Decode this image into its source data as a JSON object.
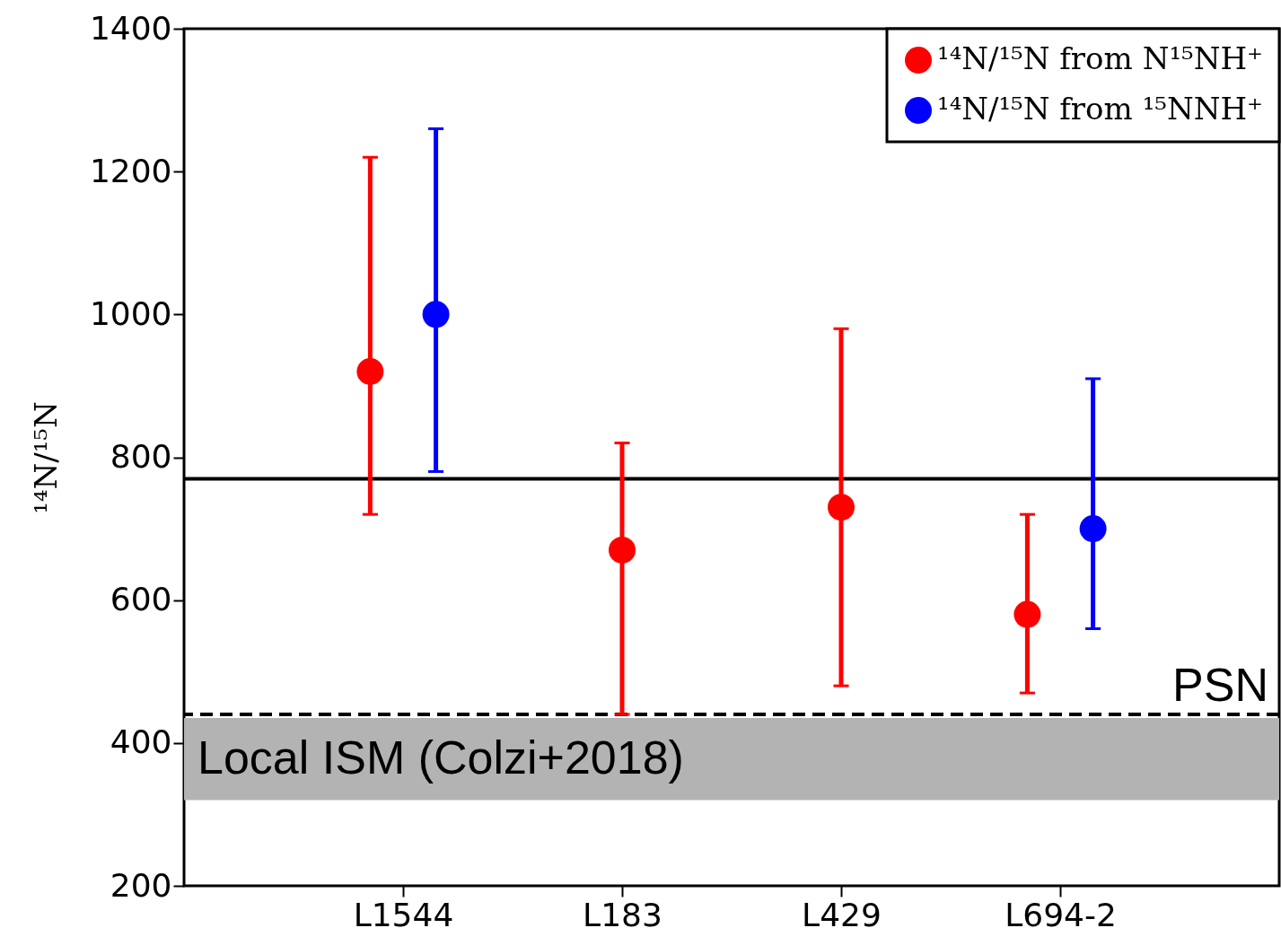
{
  "chart_data": {
    "type": "scatter",
    "ylabel": "¹⁴N/¹⁵N",
    "categories": [
      "L1544",
      "L183",
      "L429",
      "L694-2"
    ],
    "ylim": [
      200,
      1400
    ],
    "yticks": [
      200,
      400,
      600,
      800,
      1000,
      1200,
      1400
    ],
    "series": [
      {
        "name": "¹⁴N/¹⁵N from N¹⁵NH⁺",
        "color": "#ff0000",
        "values": [
          920,
          670,
          730,
          580
        ],
        "errors": [
          [
            720,
            1220
          ],
          [
            440,
            820
          ],
          [
            480,
            980
          ],
          [
            470,
            720
          ]
        ]
      },
      {
        "name": "¹⁴N/¹⁵N from ¹⁵NNH⁺",
        "color": "#0000ff",
        "values": [
          1000,
          null,
          null,
          700
        ],
        "errors": [
          [
            780,
            1260
          ],
          null,
          null,
          [
            560,
            910
          ]
        ]
      }
    ],
    "ref_lines": [
      {
        "axis": "y",
        "value": 770,
        "label": null,
        "color": "#000000",
        "line_style": "solid"
      },
      {
        "axis": "y",
        "value": 440,
        "label": "PSN",
        "color": "#000000",
        "line_style": "dashed"
      }
    ],
    "bands": [
      {
        "axis": "y",
        "from": 320,
        "to": 435,
        "label": "Local ISM (Colzi+2018)",
        "color": "#b3b3b3"
      }
    ],
    "marker": "circle",
    "grid": false,
    "legend": "top right"
  }
}
